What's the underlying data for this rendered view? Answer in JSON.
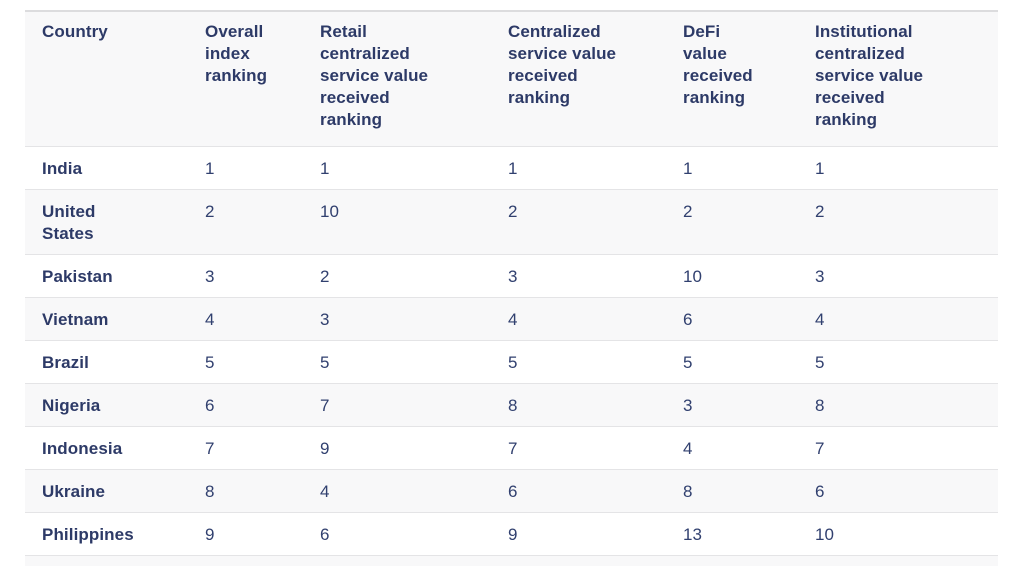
{
  "chart_data": {
    "type": "table",
    "columns": [
      "Country",
      "Overall index ranking",
      "Retail centralized service value received ranking",
      "Centralized service value received ranking",
      "DeFi value received ranking",
      "Institutional centralized service value received ranking"
    ],
    "rows": [
      [
        "India",
        1,
        1,
        1,
        1,
        1
      ],
      [
        "United States",
        2,
        10,
        2,
        2,
        2
      ],
      [
        "Pakistan",
        3,
        2,
        3,
        10,
        3
      ],
      [
        "Vietnam",
        4,
        3,
        4,
        6,
        4
      ],
      [
        "Brazil",
        5,
        5,
        5,
        5,
        5
      ],
      [
        "Nigeria",
        6,
        7,
        8,
        3,
        8
      ],
      [
        "Indonesia",
        7,
        9,
        7,
        4,
        7
      ],
      [
        "Ukraine",
        8,
        4,
        6,
        8,
        6
      ],
      [
        "Philippines",
        9,
        6,
        9,
        13,
        10
      ]
    ]
  },
  "header_display": [
    "Country",
    "Overall\nindex\nranking",
    "Retail\ncentralized\nservice value\nreceived\nranking",
    "Centralized\nservice value\nreceived\nranking",
    "DeFi\nvalue\nreceived\nranking",
    "Institutional\ncentralized\nservice value\nreceived\nranking"
  ],
  "colors": {
    "text_navy": "#2d3a67",
    "value_navy": "#31406f",
    "stripe_background": "#f8f8f9",
    "row_divider": "#e4e4e6",
    "header_top_border": "#dcdcde",
    "page_background": "#ffffff"
  }
}
